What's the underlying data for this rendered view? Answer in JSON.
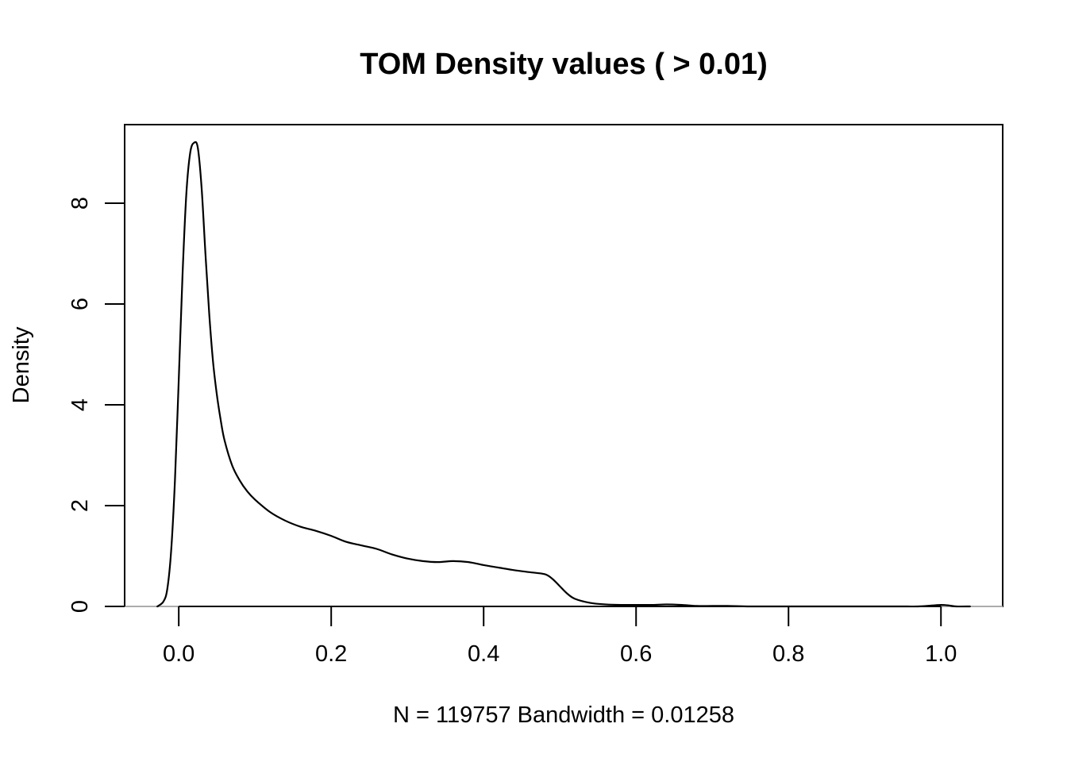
{
  "chart_data": {
    "type": "line",
    "title": "TOM Density values ( > 0.01)",
    "xlabel": "N = 119757   Bandwidth = 0.01258",
    "ylabel": "Density",
    "xlim": [
      -0.071,
      1.081
    ],
    "ylim": [
      0,
      9.56
    ],
    "x_ticks": [
      0.0,
      0.2,
      0.4,
      0.6,
      0.8,
      1.0
    ],
    "x_tick_labels": [
      "0.0",
      "0.2",
      "0.4",
      "0.6",
      "0.8",
      "1.0"
    ],
    "y_ticks": [
      0,
      2,
      4,
      6,
      8
    ],
    "y_tick_labels": [
      "0",
      "2",
      "4",
      "6",
      "8"
    ],
    "zero_line": true,
    "grid": false,
    "legend": "none",
    "series": [
      {
        "color": "#000000",
        "points": [
          [
            -0.028,
            0.0
          ],
          [
            -0.02,
            0.1
          ],
          [
            -0.015,
            0.35
          ],
          [
            -0.01,
            1.1
          ],
          [
            -0.005,
            2.5
          ],
          [
            0.0,
            4.5
          ],
          [
            0.005,
            6.6
          ],
          [
            0.01,
            8.2
          ],
          [
            0.015,
            9.0
          ],
          [
            0.02,
            9.2
          ],
          [
            0.025,
            9.1
          ],
          [
            0.03,
            8.3
          ],
          [
            0.035,
            7.0
          ],
          [
            0.04,
            5.8
          ],
          [
            0.045,
            4.85
          ],
          [
            0.05,
            4.2
          ],
          [
            0.055,
            3.7
          ],
          [
            0.06,
            3.3
          ],
          [
            0.07,
            2.8
          ],
          [
            0.08,
            2.5
          ],
          [
            0.09,
            2.28
          ],
          [
            0.1,
            2.12
          ],
          [
            0.12,
            1.87
          ],
          [
            0.14,
            1.7
          ],
          [
            0.16,
            1.58
          ],
          [
            0.18,
            1.5
          ],
          [
            0.2,
            1.4
          ],
          [
            0.22,
            1.28
          ],
          [
            0.24,
            1.21
          ],
          [
            0.26,
            1.14
          ],
          [
            0.28,
            1.03
          ],
          [
            0.3,
            0.95
          ],
          [
            0.32,
            0.9
          ],
          [
            0.34,
            0.88
          ],
          [
            0.36,
            0.9
          ],
          [
            0.38,
            0.88
          ],
          [
            0.4,
            0.82
          ],
          [
            0.42,
            0.77
          ],
          [
            0.44,
            0.72
          ],
          [
            0.46,
            0.68
          ],
          [
            0.48,
            0.64
          ],
          [
            0.49,
            0.55
          ],
          [
            0.5,
            0.4
          ],
          [
            0.51,
            0.25
          ],
          [
            0.52,
            0.15
          ],
          [
            0.54,
            0.07
          ],
          [
            0.56,
            0.04
          ],
          [
            0.58,
            0.03
          ],
          [
            0.6,
            0.03
          ],
          [
            0.62,
            0.03
          ],
          [
            0.64,
            0.04
          ],
          [
            0.66,
            0.03
          ],
          [
            0.68,
            0.01
          ],
          [
            0.7,
            0.01
          ],
          [
            0.72,
            0.01
          ],
          [
            0.75,
            0.0
          ],
          [
            0.8,
            0.0
          ],
          [
            0.85,
            0.0
          ],
          [
            0.9,
            0.0
          ],
          [
            0.95,
            0.0
          ],
          [
            0.97,
            0.0
          ],
          [
            0.99,
            0.02
          ],
          [
            1.0,
            0.03
          ],
          [
            1.01,
            0.02
          ],
          [
            1.02,
            0.0
          ],
          [
            1.038,
            0.0
          ]
        ]
      }
    ]
  }
}
